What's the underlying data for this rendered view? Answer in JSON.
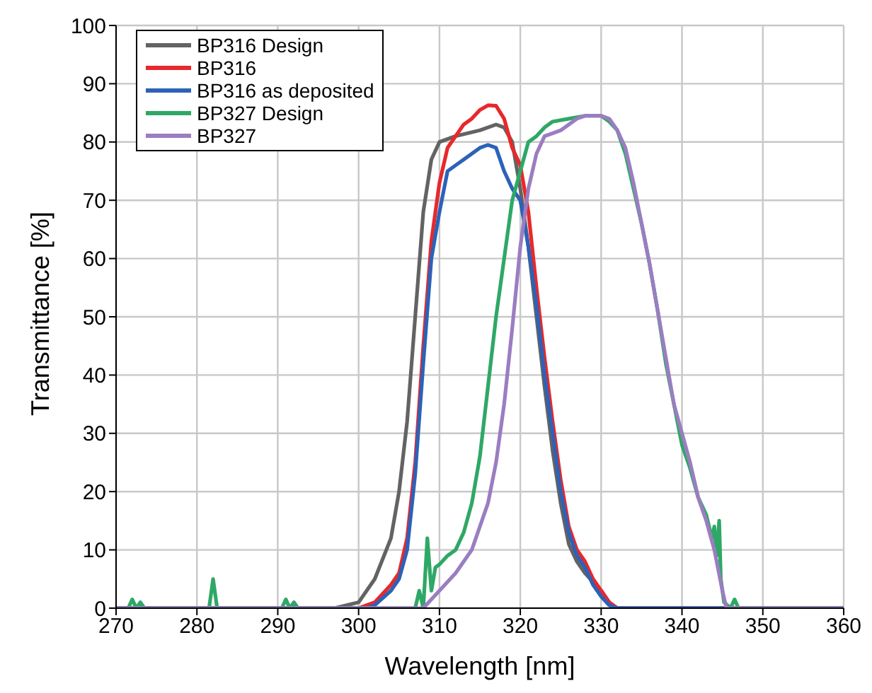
{
  "chart_data": {
    "type": "line",
    "xlabel": "Wavelength [nm]",
    "ylabel": "Transmittance [%]",
    "xlim": [
      270,
      360
    ],
    "ylim": [
      0,
      100
    ],
    "xticks": [
      270,
      280,
      290,
      300,
      310,
      320,
      330,
      340,
      350,
      360
    ],
    "yticks": [
      0,
      10,
      20,
      30,
      40,
      50,
      60,
      70,
      80,
      90,
      100
    ],
    "grid": true,
    "legend": "top left",
    "marker": "none",
    "line_style": "solid",
    "series": [
      {
        "name": "BP316 Design",
        "color": "#636363",
        "x": [
          270,
          297,
          300,
          302,
          304,
          305,
          306,
          307,
          308,
          309,
          310,
          312,
          315,
          317,
          318,
          319,
          320,
          321,
          322,
          323,
          324,
          325,
          326,
          327,
          328,
          330,
          331,
          332,
          360
        ],
        "values": [
          0,
          0,
          1,
          5,
          12,
          20,
          32,
          50,
          68,
          77,
          80,
          81,
          82,
          83,
          82.5,
          80,
          72,
          62,
          50,
          38,
          27,
          18,
          11,
          8,
          6,
          3,
          1,
          0,
          0
        ]
      },
      {
        "name": "BP316",
        "color": "#e8282b",
        "x": [
          270,
          300,
          302,
          304,
          305,
          306,
          307,
          308,
          309,
          310,
          311,
          312,
          313,
          314,
          315,
          316,
          317,
          318,
          319,
          320,
          321,
          322,
          323,
          324,
          325,
          326,
          327,
          328,
          329,
          330,
          331,
          332,
          360
        ],
        "values": [
          0,
          0,
          1,
          4,
          6,
          12,
          25,
          45,
          63,
          73,
          79,
          81,
          83,
          84,
          85.5,
          86.3,
          86.2,
          84,
          79,
          76,
          68,
          55,
          43,
          32,
          22,
          14,
          10,
          8,
          5,
          3,
          1,
          0,
          0
        ]
      },
      {
        "name": "BP316 as deposited",
        "color": "#2c62b8",
        "x": [
          270,
          301,
          302,
          304,
          305,
          306,
          307,
          308,
          309,
          310,
          311,
          312,
          313,
          315,
          316,
          317,
          318,
          319,
          320,
          321,
          322,
          323,
          324,
          325,
          326,
          327,
          328,
          329,
          330,
          331,
          332,
          360
        ],
        "values": [
          0,
          0,
          0.5,
          3,
          5,
          10,
          23,
          42,
          60,
          68,
          75,
          76,
          77,
          79,
          79.5,
          79,
          75,
          72,
          70,
          62,
          52,
          40,
          30,
          20,
          13,
          9,
          7,
          4,
          2,
          0.5,
          0,
          0
        ]
      },
      {
        "name": "BP327 Design",
        "color": "#2ea866",
        "x": [
          270,
          271.5,
          272,
          272.5,
          273,
          273.5,
          281.5,
          282,
          282.5,
          290.5,
          291,
          291.5,
          292,
          292.5,
          307,
          307.5,
          308,
          308.5,
          309,
          309.5,
          310,
          311,
          312,
          313,
          314,
          315,
          316,
          317,
          318,
          319,
          320,
          321,
          322,
          323,
          324,
          326,
          328,
          330,
          331,
          332,
          333,
          334,
          335,
          336,
          337,
          338,
          339,
          340,
          341,
          342,
          343,
          343.7,
          344,
          344.3,
          344.6,
          344.8,
          345.2,
          346,
          346.5,
          347,
          360
        ],
        "values": [
          0,
          0,
          1.5,
          0,
          1,
          0,
          0,
          5,
          0,
          0,
          1.5,
          0,
          1,
          0,
          0,
          3,
          0,
          12,
          3,
          7,
          7.5,
          9,
          10,
          13,
          18,
          26,
          38,
          50,
          60,
          70,
          75,
          80,
          81,
          82.5,
          83.5,
          84,
          84.5,
          84.5,
          83.5,
          82,
          78,
          72,
          66,
          59,
          51,
          42,
          35,
          28,
          24,
          19,
          16,
          12,
          14,
          9,
          15,
          5,
          1,
          0,
          1.5,
          0,
          0
        ]
      },
      {
        "name": "BP327",
        "color": "#9b7dc1",
        "x": [
          270,
          308,
          310,
          312,
          314,
          316,
          317,
          318,
          319,
          320,
          321,
          322,
          323,
          324,
          325,
          326,
          327,
          328,
          330,
          331,
          332,
          333,
          334,
          335,
          336,
          337,
          338,
          339,
          340,
          341,
          342,
          343,
          344,
          345,
          345.5,
          360
        ],
        "values": [
          0,
          0,
          3,
          6,
          10,
          18,
          25,
          35,
          48,
          62,
          72,
          78,
          81,
          81.5,
          82,
          83,
          84,
          84.5,
          84.5,
          84,
          82,
          79,
          73,
          66,
          59,
          51,
          43,
          35,
          30,
          25,
          19,
          15,
          10,
          3,
          0,
          0
        ]
      }
    ]
  }
}
